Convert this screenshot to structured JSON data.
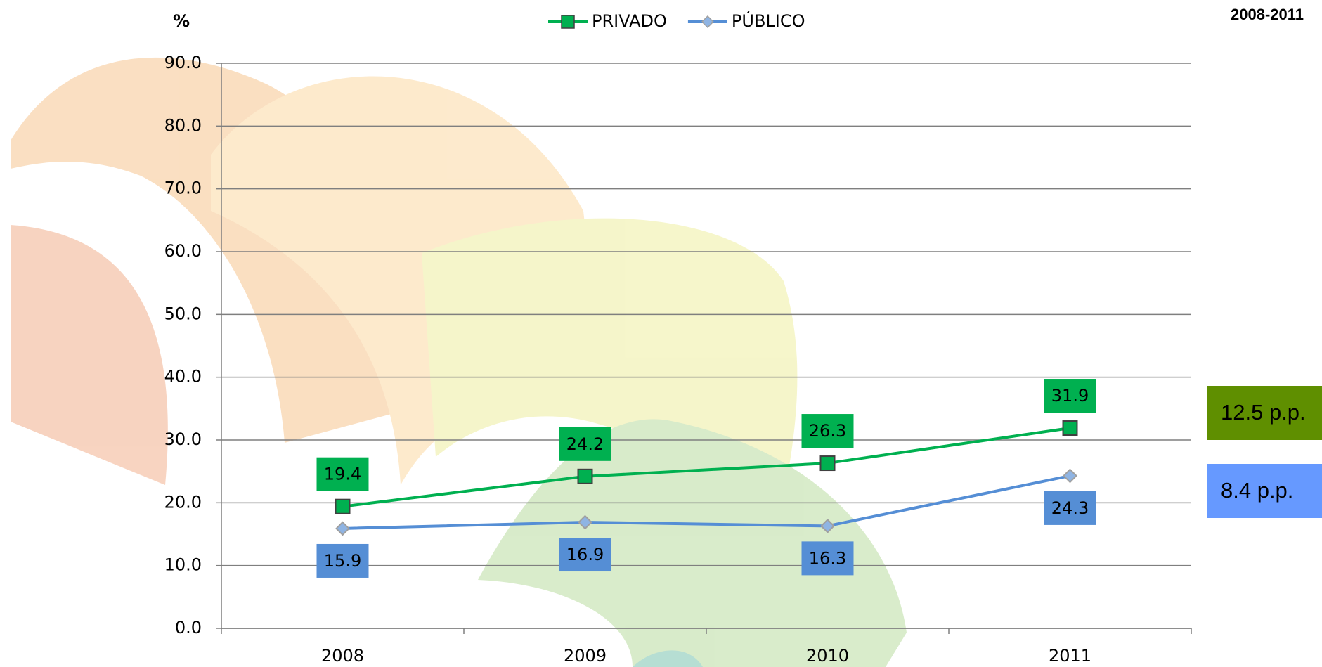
{
  "chart_data": {
    "type": "line",
    "y_axis_label": "%",
    "period": "2008-2011",
    "categories": [
      "2008",
      "2009",
      "2010",
      "2011"
    ],
    "series": [
      {
        "name": "PRIVADO",
        "color": "#00b050",
        "label_color": "#00b050",
        "marker": "square",
        "values": [
          19.4,
          24.2,
          26.3,
          31.9
        ]
      },
      {
        "name": "PÚBLICO",
        "color": "#558ed5",
        "label_color": "#558ed5",
        "marker": "diamond",
        "values": [
          15.9,
          16.9,
          16.3,
          24.3
        ]
      }
    ],
    "annotations": [
      {
        "text": "12.5 p.p.",
        "color": "#5f8f00"
      },
      {
        "text": "8.4 p.p.",
        "color": "#6699ff"
      }
    ],
    "ylim": [
      0,
      90
    ],
    "yticks": [
      {
        "value": 0,
        "label": "0.0"
      },
      {
        "value": 10,
        "label": "10.0"
      },
      {
        "value": 20,
        "label": "20.0"
      },
      {
        "value": 30,
        "label": "30.0"
      },
      {
        "value": 40,
        "label": "40.0"
      },
      {
        "value": 50,
        "label": "50.0"
      },
      {
        "value": 60,
        "label": "60.0"
      },
      {
        "value": 70,
        "label": "70.0"
      },
      {
        "value": 80,
        "label": "80.0"
      },
      {
        "value": 90,
        "label": "90.0"
      }
    ],
    "grid": true,
    "legend": "top"
  }
}
